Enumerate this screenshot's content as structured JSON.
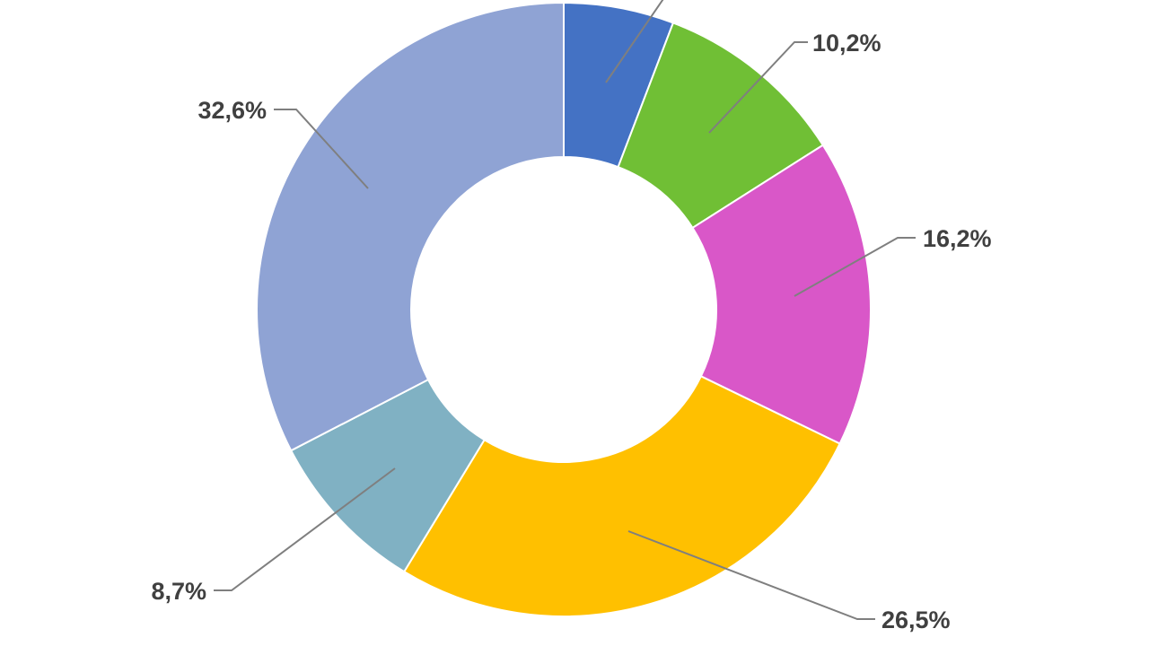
{
  "chart_data": {
    "type": "donut",
    "values": [
      5.8,
      10.2,
      16.2,
      26.5,
      8.7,
      32.6
    ],
    "value_labels": [
      null,
      "10,2%",
      "16,2%",
      "26,5%",
      "8,7%",
      "32,6%"
    ],
    "colors": [
      "#4472c4",
      "#70bf35",
      "#d957c8",
      "#ffc000",
      "#80b1c3",
      "#8fa3d4"
    ]
  }
}
